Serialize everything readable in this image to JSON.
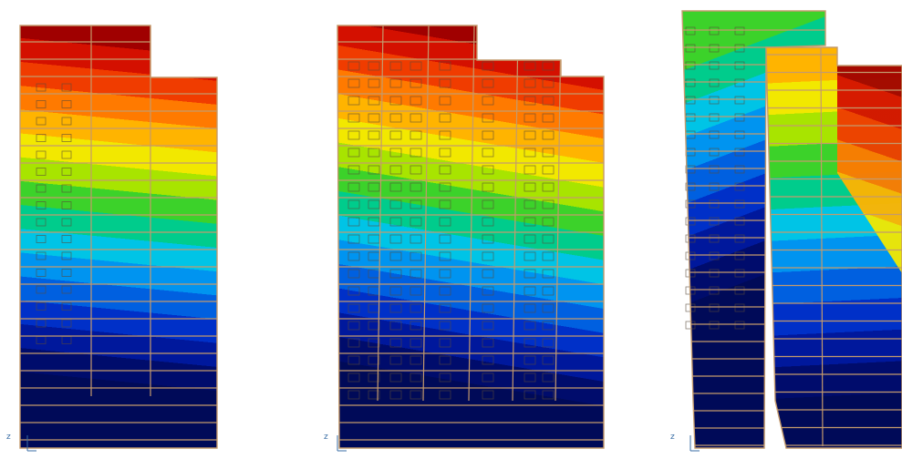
{
  "panels": [
    {
      "axis_label": "z"
    },
    {
      "axis_label": "z"
    },
    {
      "axis_label": "z"
    }
  ]
}
